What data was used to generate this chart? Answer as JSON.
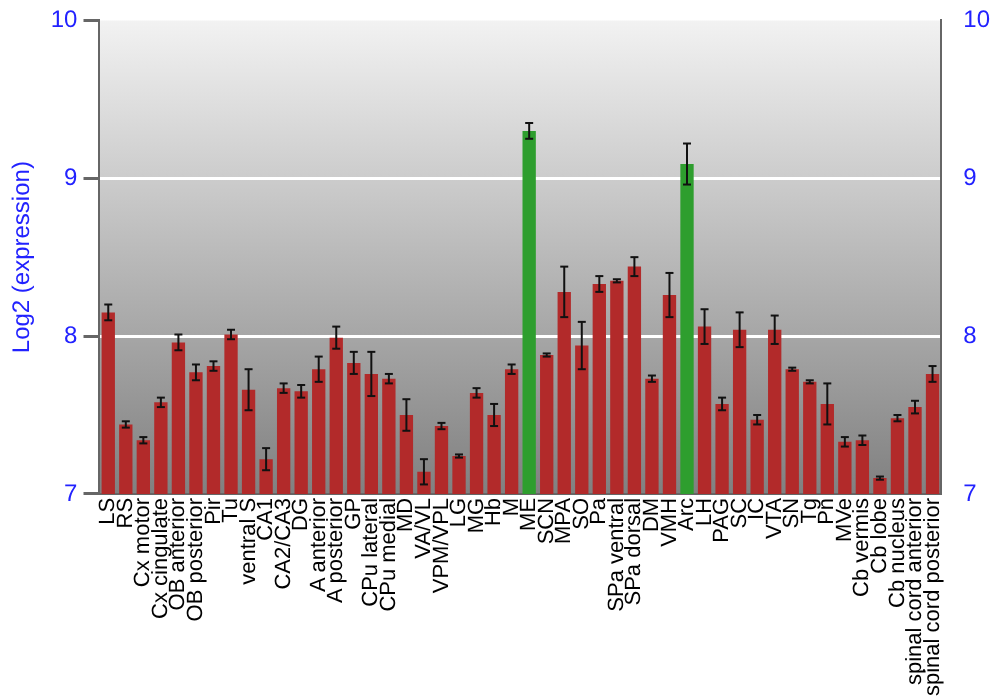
{
  "chart_data": {
    "type": "bar",
    "ylabel": "Log2 (expression)",
    "categories": [
      "LS",
      "RS",
      "Cx motor",
      "Cx cingulate",
      "OB anterior",
      "OB posterior",
      "Pir",
      "Tu",
      "ventral S",
      "CA1",
      "CA2/CA3",
      "DG",
      "A anterior",
      "A posterior",
      "GP",
      "CPu lateral",
      "CPu medial",
      "MD",
      "VA/VL",
      "VPM/VPL",
      "LG",
      "MG",
      "Hb",
      "M",
      "ME",
      "SCN",
      "MPA",
      "SO",
      "Pa",
      "SPa ventral",
      "SPa dorsal",
      "DM",
      "VMH",
      "Arc",
      "LH",
      "PAG",
      "SC",
      "IC",
      "VTA",
      "SN",
      "Tg",
      "Pn",
      "MVe",
      "Cb vermis",
      "Cb lobe",
      "Cb nucleus",
      "spinal cord anterior",
      "spinal cord posterior"
    ],
    "values": [
      8.15,
      7.44,
      7.34,
      7.58,
      7.96,
      7.77,
      7.81,
      8.01,
      7.66,
      7.22,
      7.67,
      7.65,
      7.79,
      7.99,
      7.83,
      7.76,
      7.73,
      7.5,
      7.14,
      7.43,
      7.24,
      7.64,
      7.5,
      7.79,
      9.3,
      7.88,
      8.28,
      7.94,
      8.33,
      8.35,
      8.44,
      7.73,
      8.26,
      9.09,
      8.06,
      7.57,
      8.04,
      7.47,
      8.04,
      7.79,
      7.71,
      7.57,
      7.33,
      7.34,
      7.1,
      7.48,
      7.55,
      7.76
    ],
    "errors": [
      0.05,
      0.02,
      0.02,
      0.03,
      0.05,
      0.05,
      0.03,
      0.03,
      0.13,
      0.07,
      0.03,
      0.04,
      0.08,
      0.07,
      0.07,
      0.14,
      0.03,
      0.1,
      0.08,
      0.02,
      0.01,
      0.03,
      0.07,
      0.03,
      0.05,
      0.01,
      0.16,
      0.15,
      0.05,
      0.01,
      0.06,
      0.02,
      0.14,
      0.13,
      0.11,
      0.04,
      0.11,
      0.03,
      0.09,
      0.01,
      0.01,
      0.13,
      0.03,
      0.03,
      0.01,
      0.02,
      0.04,
      0.05
    ],
    "colors": [
      "#b22a2a",
      "#b22a2a",
      "#b22a2a",
      "#b22a2a",
      "#b22a2a",
      "#b22a2a",
      "#b22a2a",
      "#b22a2a",
      "#b22a2a",
      "#b22a2a",
      "#b22a2a",
      "#b22a2a",
      "#b22a2a",
      "#b22a2a",
      "#b22a2a",
      "#b22a2a",
      "#b22a2a",
      "#b22a2a",
      "#b22a2a",
      "#b22a2a",
      "#b22a2a",
      "#b22a2a",
      "#b22a2a",
      "#b22a2a",
      "#2e9e2e",
      "#b22a2a",
      "#b22a2a",
      "#b22a2a",
      "#b22a2a",
      "#b22a2a",
      "#b22a2a",
      "#b22a2a",
      "#b22a2a",
      "#2e9e2e",
      "#b22a2a",
      "#b22a2a",
      "#b22a2a",
      "#b22a2a",
      "#b22a2a",
      "#b22a2a",
      "#b22a2a",
      "#b22a2a",
      "#b22a2a",
      "#b22a2a",
      "#b22a2a",
      "#b22a2a",
      "#b22a2a",
      "#b22a2a"
    ],
    "ylim": [
      7,
      10
    ],
    "yticks": [
      7,
      8,
      9,
      10
    ],
    "y2lim": [
      7,
      10
    ],
    "y2ticks": [
      7,
      8,
      9,
      10
    ],
    "grid": "y",
    "legend": false
  }
}
